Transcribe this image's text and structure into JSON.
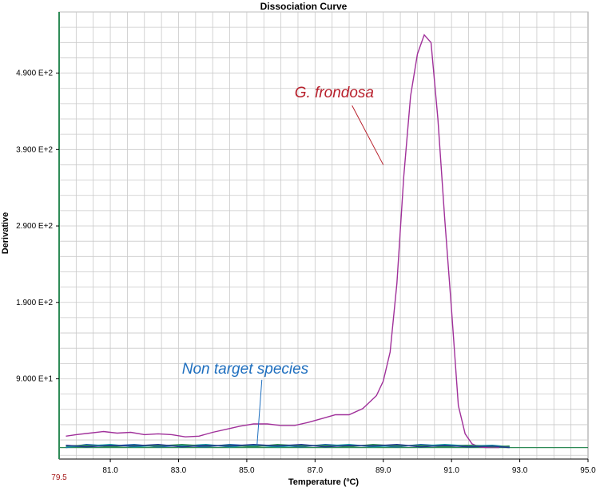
{
  "chart_data": {
    "type": "line",
    "title": "Dissociation Curve",
    "xlabel": "Temperature (ºC)",
    "ylabel": "Derivative",
    "xlim": [
      79.5,
      95.0
    ],
    "ylim": [
      -15,
      570
    ],
    "grid": true,
    "x_first_tick_label": "79.5",
    "x_ticks": [
      {
        "value": 81.0,
        "label": "81.0"
      },
      {
        "value": 83.0,
        "label": "83.0"
      },
      {
        "value": 85.0,
        "label": "85.0"
      },
      {
        "value": 87.0,
        "label": "87.0"
      },
      {
        "value": 89.0,
        "label": "89.0"
      },
      {
        "value": 91.0,
        "label": "91.0"
      },
      {
        "value": 93.0,
        "label": "93.0"
      },
      {
        "value": 95.0,
        "label": "95.0"
      }
    ],
    "y_ticks": [
      {
        "value": 90,
        "label": "9.000  E+1"
      },
      {
        "value": 190,
        "label": "1.900  E+2"
      },
      {
        "value": 290,
        "label": "2.900  E+2"
      },
      {
        "value": 390,
        "label": "3.900  E+2"
      },
      {
        "value": 490,
        "label": "4.900  E+2"
      }
    ],
    "series": [
      {
        "color": "#a0309a",
        "x": [
          79.7,
          80.0,
          80.4,
          80.8,
          81.2,
          81.6,
          82.0,
          82.4,
          82.8,
          83.2,
          83.6,
          84.0,
          84.4,
          84.8,
          85.2,
          85.6,
          86.0,
          86.4,
          86.8,
          87.2,
          87.6,
          88.0,
          88.4,
          88.8,
          89.0,
          89.2,
          89.4,
          89.6,
          89.8,
          90.0,
          90.2,
          90.4,
          90.6,
          90.8,
          91.0,
          91.2,
          91.4,
          91.6,
          91.8,
          92.0,
          92.4
        ],
        "y": [
          15,
          17,
          19,
          21,
          19,
          20,
          17,
          18,
          17,
          14,
          15,
          20,
          24,
          28,
          31,
          31,
          29,
          29,
          33,
          38,
          43,
          43,
          51,
          68,
          87,
          125,
          215,
          355,
          460,
          515,
          540,
          530,
          430,
          300,
          180,
          55,
          18,
          5,
          1,
          0,
          0
        ]
      },
      {
        "color": "#1a5fb4",
        "x": [
          79.7,
          80.3,
          81.0,
          81.7,
          82.4,
          83.1,
          83.8,
          84.5,
          85.2,
          85.9,
          86.6,
          87.3,
          88.0,
          88.7,
          89.4,
          90.1,
          90.8,
          91.5,
          92.2,
          92.7
        ],
        "y": [
          0,
          4,
          2,
          4,
          1,
          3,
          1,
          4,
          2,
          3,
          1,
          4,
          2,
          3,
          1,
          4,
          2,
          3,
          2,
          1
        ]
      },
      {
        "color": "#16a3a3",
        "x": [
          79.7,
          80.3,
          81.0,
          81.7,
          82.4,
          83.1,
          83.8,
          84.5,
          85.2,
          85.9,
          86.6,
          87.3,
          88.0,
          88.7,
          89.4,
          90.1,
          90.8,
          91.5,
          92.2,
          92.7
        ],
        "y": [
          1,
          2,
          4,
          1,
          3,
          2,
          4,
          1,
          3,
          1,
          3,
          2,
          4,
          1,
          3,
          2,
          4,
          2,
          3,
          1
        ]
      },
      {
        "color": "#2e8b57",
        "x": [
          79.7,
          80.3,
          81.0,
          81.7,
          82.4,
          83.1,
          83.8,
          84.5,
          85.2,
          85.9,
          86.6,
          87.3,
          88.0,
          88.7,
          89.4,
          90.1,
          90.8,
          91.5,
          92.2,
          92.7
        ],
        "y": [
          2,
          3,
          1,
          3,
          2,
          4,
          2,
          3,
          1,
          4,
          2,
          3,
          1,
          4,
          2,
          3,
          1,
          3,
          1,
          2
        ]
      },
      {
        "color": "#203a8c",
        "x": [
          79.7,
          80.3,
          81.0,
          81.7,
          82.4,
          83.1,
          83.8,
          84.5,
          85.2,
          85.9,
          86.6,
          87.3,
          88.0,
          88.7,
          89.4,
          90.1,
          90.8,
          91.5,
          92.2,
          92.7
        ],
        "y": [
          3,
          1,
          3,
          2,
          4,
          1,
          3,
          2,
          4,
          2,
          4,
          1,
          3,
          2,
          4,
          1,
          3,
          1,
          2,
          0
        ]
      }
    ],
    "baseline_color": "#2e8b57",
    "annotations": [
      {
        "text": "G. frondosa",
        "color": "#b8202c",
        "text_x": 86.4,
        "text_y": 458,
        "target_x": 89.0,
        "target_y": 370
      },
      {
        "text": "Non target species",
        "color": "#1f6fbf",
        "text_x": 83.1,
        "text_y": 97,
        "target_x": 85.3,
        "target_y": 3
      }
    ]
  }
}
